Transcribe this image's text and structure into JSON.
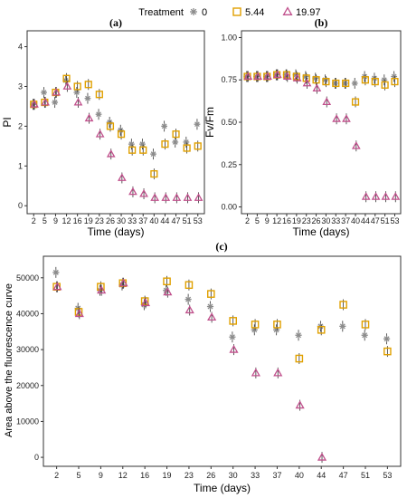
{
  "legend": {
    "title": "Treatment",
    "items": [
      {
        "label": "0",
        "marker": "asterisk",
        "color": "#8c8c8c"
      },
      {
        "label": "5.44",
        "marker": "square",
        "color": "#e0a000"
      },
      {
        "label": "19.97",
        "marker": "triangle",
        "color": "#c0508c"
      }
    ]
  },
  "chart_data": [
    {
      "panel_label": "(a)",
      "type": "scatter",
      "xlabel": "Time (days)",
      "ylabel": "PI",
      "x": [
        2,
        5,
        9,
        12,
        16,
        19,
        23,
        26,
        30,
        33,
        37,
        40,
        44,
        47,
        51,
        53
      ],
      "ylim": [
        -0.2,
        4.4
      ],
      "yticks": [
        "0",
        "1",
        "2",
        "3",
        "4"
      ],
      "series": [
        {
          "name": "0",
          "values": [
            2.55,
            2.85,
            2.6,
            3.15,
            2.85,
            2.7,
            2.3,
            2.1,
            1.9,
            1.55,
            1.55,
            1.3,
            2.0,
            1.6,
            1.6,
            2.05
          ]
        },
        {
          "name": "5.44",
          "values": [
            2.55,
            2.6,
            2.85,
            3.2,
            3.0,
            3.05,
            2.8,
            2.0,
            1.8,
            1.4,
            1.4,
            0.8,
            1.55,
            1.8,
            1.45,
            1.5
          ]
        },
        {
          "name": "19.97",
          "values": [
            2.55,
            2.6,
            2.85,
            3.0,
            2.6,
            2.2,
            1.8,
            1.3,
            0.7,
            0.35,
            0.3,
            0.2,
            0.2,
            0.2,
            0.2,
            0.2
          ]
        }
      ]
    },
    {
      "panel_label": "(b)",
      "type": "scatter",
      "xlabel": "Time (days)",
      "ylabel": "Fv/Fm",
      "x": [
        2,
        5,
        9,
        12,
        16,
        19,
        23,
        26,
        30,
        33,
        37,
        40,
        44,
        47,
        51,
        53
      ],
      "ylim": [
        -0.04,
        1.04
      ],
      "yticks": [
        "0.00",
        "0.25",
        "0.50",
        "0.75",
        "1.00"
      ],
      "series": [
        {
          "name": "0",
          "values": [
            0.77,
            0.77,
            0.77,
            0.78,
            0.78,
            0.78,
            0.77,
            0.76,
            0.75,
            0.73,
            0.73,
            0.73,
            0.77,
            0.76,
            0.75,
            0.77
          ]
        },
        {
          "name": "5.44",
          "values": [
            0.77,
            0.77,
            0.77,
            0.78,
            0.78,
            0.77,
            0.76,
            0.75,
            0.74,
            0.73,
            0.73,
            0.62,
            0.75,
            0.74,
            0.72,
            0.74
          ]
        },
        {
          "name": "19.97",
          "values": [
            0.77,
            0.77,
            0.77,
            0.78,
            0.77,
            0.76,
            0.73,
            0.7,
            0.62,
            0.52,
            0.52,
            0.36,
            0.06,
            0.06,
            0.06,
            0.06
          ]
        }
      ]
    },
    {
      "panel_label": "(c)",
      "type": "scatter",
      "xlabel": "Time (days)",
      "ylabel": "Area above the fluorescence curve",
      "x": [
        2,
        5,
        9,
        12,
        16,
        19,
        23,
        26,
        30,
        33,
        37,
        40,
        44,
        47,
        51,
        53
      ],
      "ylim": [
        -2500,
        56000
      ],
      "yticks": [
        "0",
        "10000",
        "20000",
        "30000",
        "40000",
        "50000"
      ],
      "series": [
        {
          "name": "0",
          "values": [
            51500,
            41500,
            46500,
            48000,
            42500,
            46500,
            44000,
            42000,
            33500,
            35500,
            35500,
            34000,
            36500,
            36500,
            34000,
            33000
          ]
        },
        {
          "name": "5.44",
          "values": [
            47500,
            40500,
            47500,
            48500,
            43500,
            49000,
            48000,
            45500,
            38000,
            37000,
            37000,
            27500,
            35500,
            42500,
            37000,
            29500
          ]
        },
        {
          "name": "19.97",
          "values": [
            47500,
            40000,
            46500,
            48500,
            43000,
            46000,
            41000,
            39000,
            30000,
            23500,
            23500,
            14500,
            0,
            null,
            null,
            null
          ]
        }
      ]
    }
  ]
}
